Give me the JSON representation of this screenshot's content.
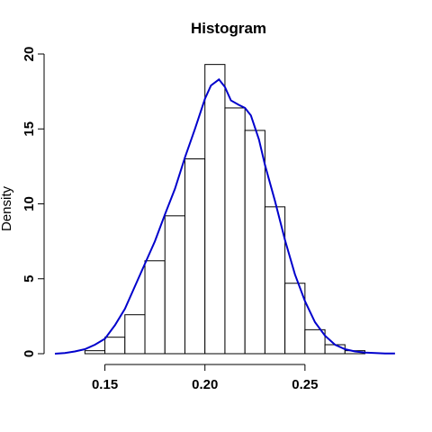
{
  "chart_data": {
    "type": "bar",
    "title": "Histogram",
    "xlabel": "",
    "ylabel": "Density",
    "xlim": [
      0.125,
      0.3
    ],
    "ylim": [
      0,
      20
    ],
    "x_ticks": [
      0.15,
      0.2,
      0.25
    ],
    "x_tick_labels": [
      "0.15",
      "0.20",
      "0.25"
    ],
    "y_ticks": [
      0,
      5,
      10,
      15,
      20
    ],
    "y_tick_labels": [
      "0",
      "5",
      "10",
      "15",
      "20"
    ],
    "grid": false,
    "legend": "none",
    "bins": [
      {
        "start": 0.14,
        "end": 0.15,
        "density": 0.2
      },
      {
        "start": 0.15,
        "end": 0.16,
        "density": 1.1
      },
      {
        "start": 0.16,
        "end": 0.17,
        "density": 2.6
      },
      {
        "start": 0.17,
        "end": 0.18,
        "density": 6.2
      },
      {
        "start": 0.18,
        "end": 0.19,
        "density": 9.2
      },
      {
        "start": 0.19,
        "end": 0.2,
        "density": 13.0
      },
      {
        "start": 0.2,
        "end": 0.21,
        "density": 19.3
      },
      {
        "start": 0.21,
        "end": 0.22,
        "density": 16.4
      },
      {
        "start": 0.22,
        "end": 0.23,
        "density": 14.9
      },
      {
        "start": 0.23,
        "end": 0.24,
        "density": 9.8
      },
      {
        "start": 0.24,
        "end": 0.25,
        "density": 4.7
      },
      {
        "start": 0.25,
        "end": 0.26,
        "density": 1.6
      },
      {
        "start": 0.26,
        "end": 0.27,
        "density": 0.6
      },
      {
        "start": 0.27,
        "end": 0.28,
        "density": 0.2
      }
    ],
    "density_curve": {
      "color": "#0000cc",
      "x": [
        0.125,
        0.13,
        0.135,
        0.14,
        0.145,
        0.15,
        0.155,
        0.16,
        0.165,
        0.17,
        0.175,
        0.18,
        0.185,
        0.19,
        0.195,
        0.2,
        0.203,
        0.207,
        0.21,
        0.213,
        0.217,
        0.22,
        0.223,
        0.227,
        0.23,
        0.235,
        0.24,
        0.245,
        0.25,
        0.255,
        0.26,
        0.265,
        0.27,
        0.275,
        0.28,
        0.285,
        0.29,
        0.295
      ],
      "y": [
        0.0,
        0.05,
        0.15,
        0.3,
        0.6,
        1.0,
        1.9,
        3.0,
        4.5,
        6.0,
        7.5,
        9.3,
        11.0,
        13.1,
        15.0,
        17.0,
        17.9,
        18.3,
        17.8,
        16.9,
        16.6,
        16.4,
        15.9,
        14.3,
        12.6,
        10.2,
        7.6,
        5.3,
        3.5,
        2.1,
        1.2,
        0.6,
        0.3,
        0.15,
        0.08,
        0.04,
        0.02,
        0.01
      ]
    }
  }
}
